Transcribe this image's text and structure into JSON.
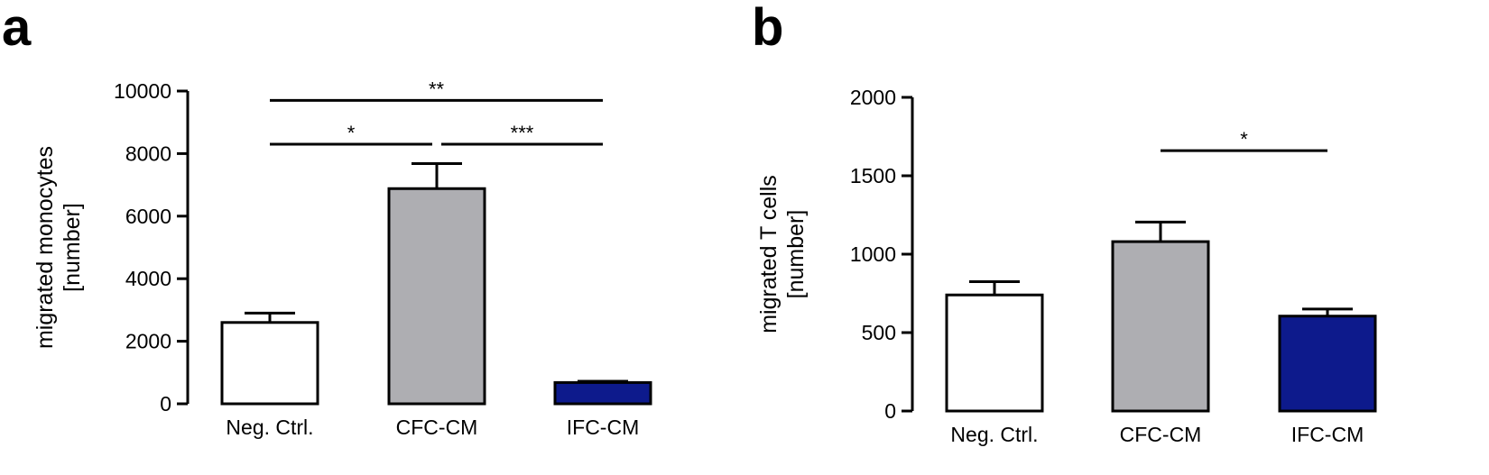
{
  "chart_data": [
    {
      "panel": "a",
      "type": "bar",
      "categories": [
        "Neg. Ctrl.",
        "CFC-CM",
        "IFC-CM"
      ],
      "values": [
        2600,
        6880,
        680
      ],
      "errors": [
        300,
        800,
        40
      ],
      "colors": [
        "#ffffff",
        "#aeaeb2",
        "#0d1a8c"
      ],
      "ylabel": [
        "migrated monocytes",
        "[number]"
      ],
      "ylim": [
        0,
        10000
      ],
      "yticks": [
        0,
        2000,
        4000,
        6000,
        8000,
        10000
      ],
      "significance": [
        {
          "from": 0,
          "to": 2,
          "label": "**",
          "level": 9700
        },
        {
          "from": 0,
          "to": 1,
          "label": "*",
          "level": 8300
        },
        {
          "from": 1,
          "to": 2,
          "label": "***",
          "level": 8300
        }
      ]
    },
    {
      "panel": "b",
      "type": "bar",
      "categories": [
        "Neg. Ctrl.",
        "CFC-CM",
        "IFC-CM"
      ],
      "values": [
        740,
        1080,
        605
      ],
      "errors": [
        85,
        125,
        45
      ],
      "colors": [
        "#ffffff",
        "#aeaeb2",
        "#0d1a8c"
      ],
      "ylabel": [
        "migrated T cells",
        "[number]"
      ],
      "ylim": [
        0,
        2000
      ],
      "yticks": [
        0,
        500,
        1000,
        1500,
        2000
      ],
      "significance": [
        {
          "from": 1,
          "to": 2,
          "label": "*",
          "level": 1660
        }
      ]
    }
  ]
}
